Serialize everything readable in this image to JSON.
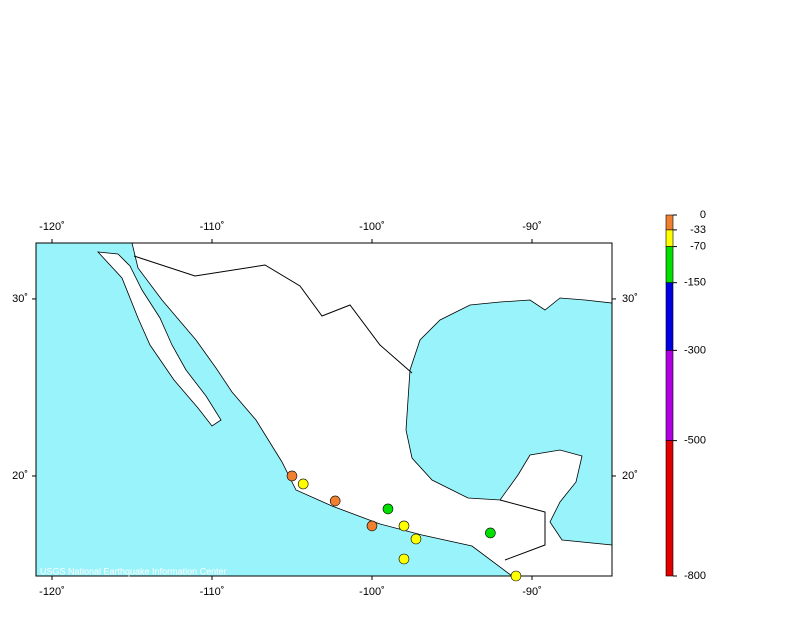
{
  "map": {
    "xlim": [
      -121,
      -85
    ],
    "ylim": [
      14.35,
      33.16
    ],
    "xticks": [
      {
        "value": -120,
        "label": "-120˚"
      },
      {
        "value": -110,
        "label": "-110˚"
      },
      {
        "value": -100,
        "label": "-100˚"
      },
      {
        "value": -90,
        "label": "-90˚"
      }
    ],
    "yticks": [
      {
        "value": 30,
        "label": "30˚"
      },
      {
        "value": 20,
        "label": "20˚"
      }
    ],
    "credit": "USGS National Earthquake Information Center",
    "points": [
      {
        "lon": -105.0,
        "lat": 20.0,
        "depth": -20
      },
      {
        "lon": -104.3,
        "lat": 19.55,
        "depth": -50
      },
      {
        "lon": -102.3,
        "lat": 18.59,
        "depth": -20
      },
      {
        "lon": -99.0,
        "lat": 18.14,
        "depth": -100
      },
      {
        "lon": -100.0,
        "lat": 17.18,
        "depth": -20
      },
      {
        "lon": -98.0,
        "lat": 17.18,
        "depth": -50
      },
      {
        "lon": -97.25,
        "lat": 16.44,
        "depth": -50
      },
      {
        "lon": -98.0,
        "lat": 15.31,
        "depth": -50
      },
      {
        "lon": -92.6,
        "lat": 16.78,
        "depth": -100
      },
      {
        "lon": -91.0,
        "lat": 14.35,
        "depth": -50
      }
    ]
  },
  "depth_scale": {
    "ticks": [
      0,
      -33,
      -70,
      -150,
      -300,
      -500,
      -800
    ],
    "colors": [
      "#f08030",
      "#ffff00",
      "#00e000",
      "#0000e0",
      "#b000e0",
      "#e00000"
    ]
  }
}
